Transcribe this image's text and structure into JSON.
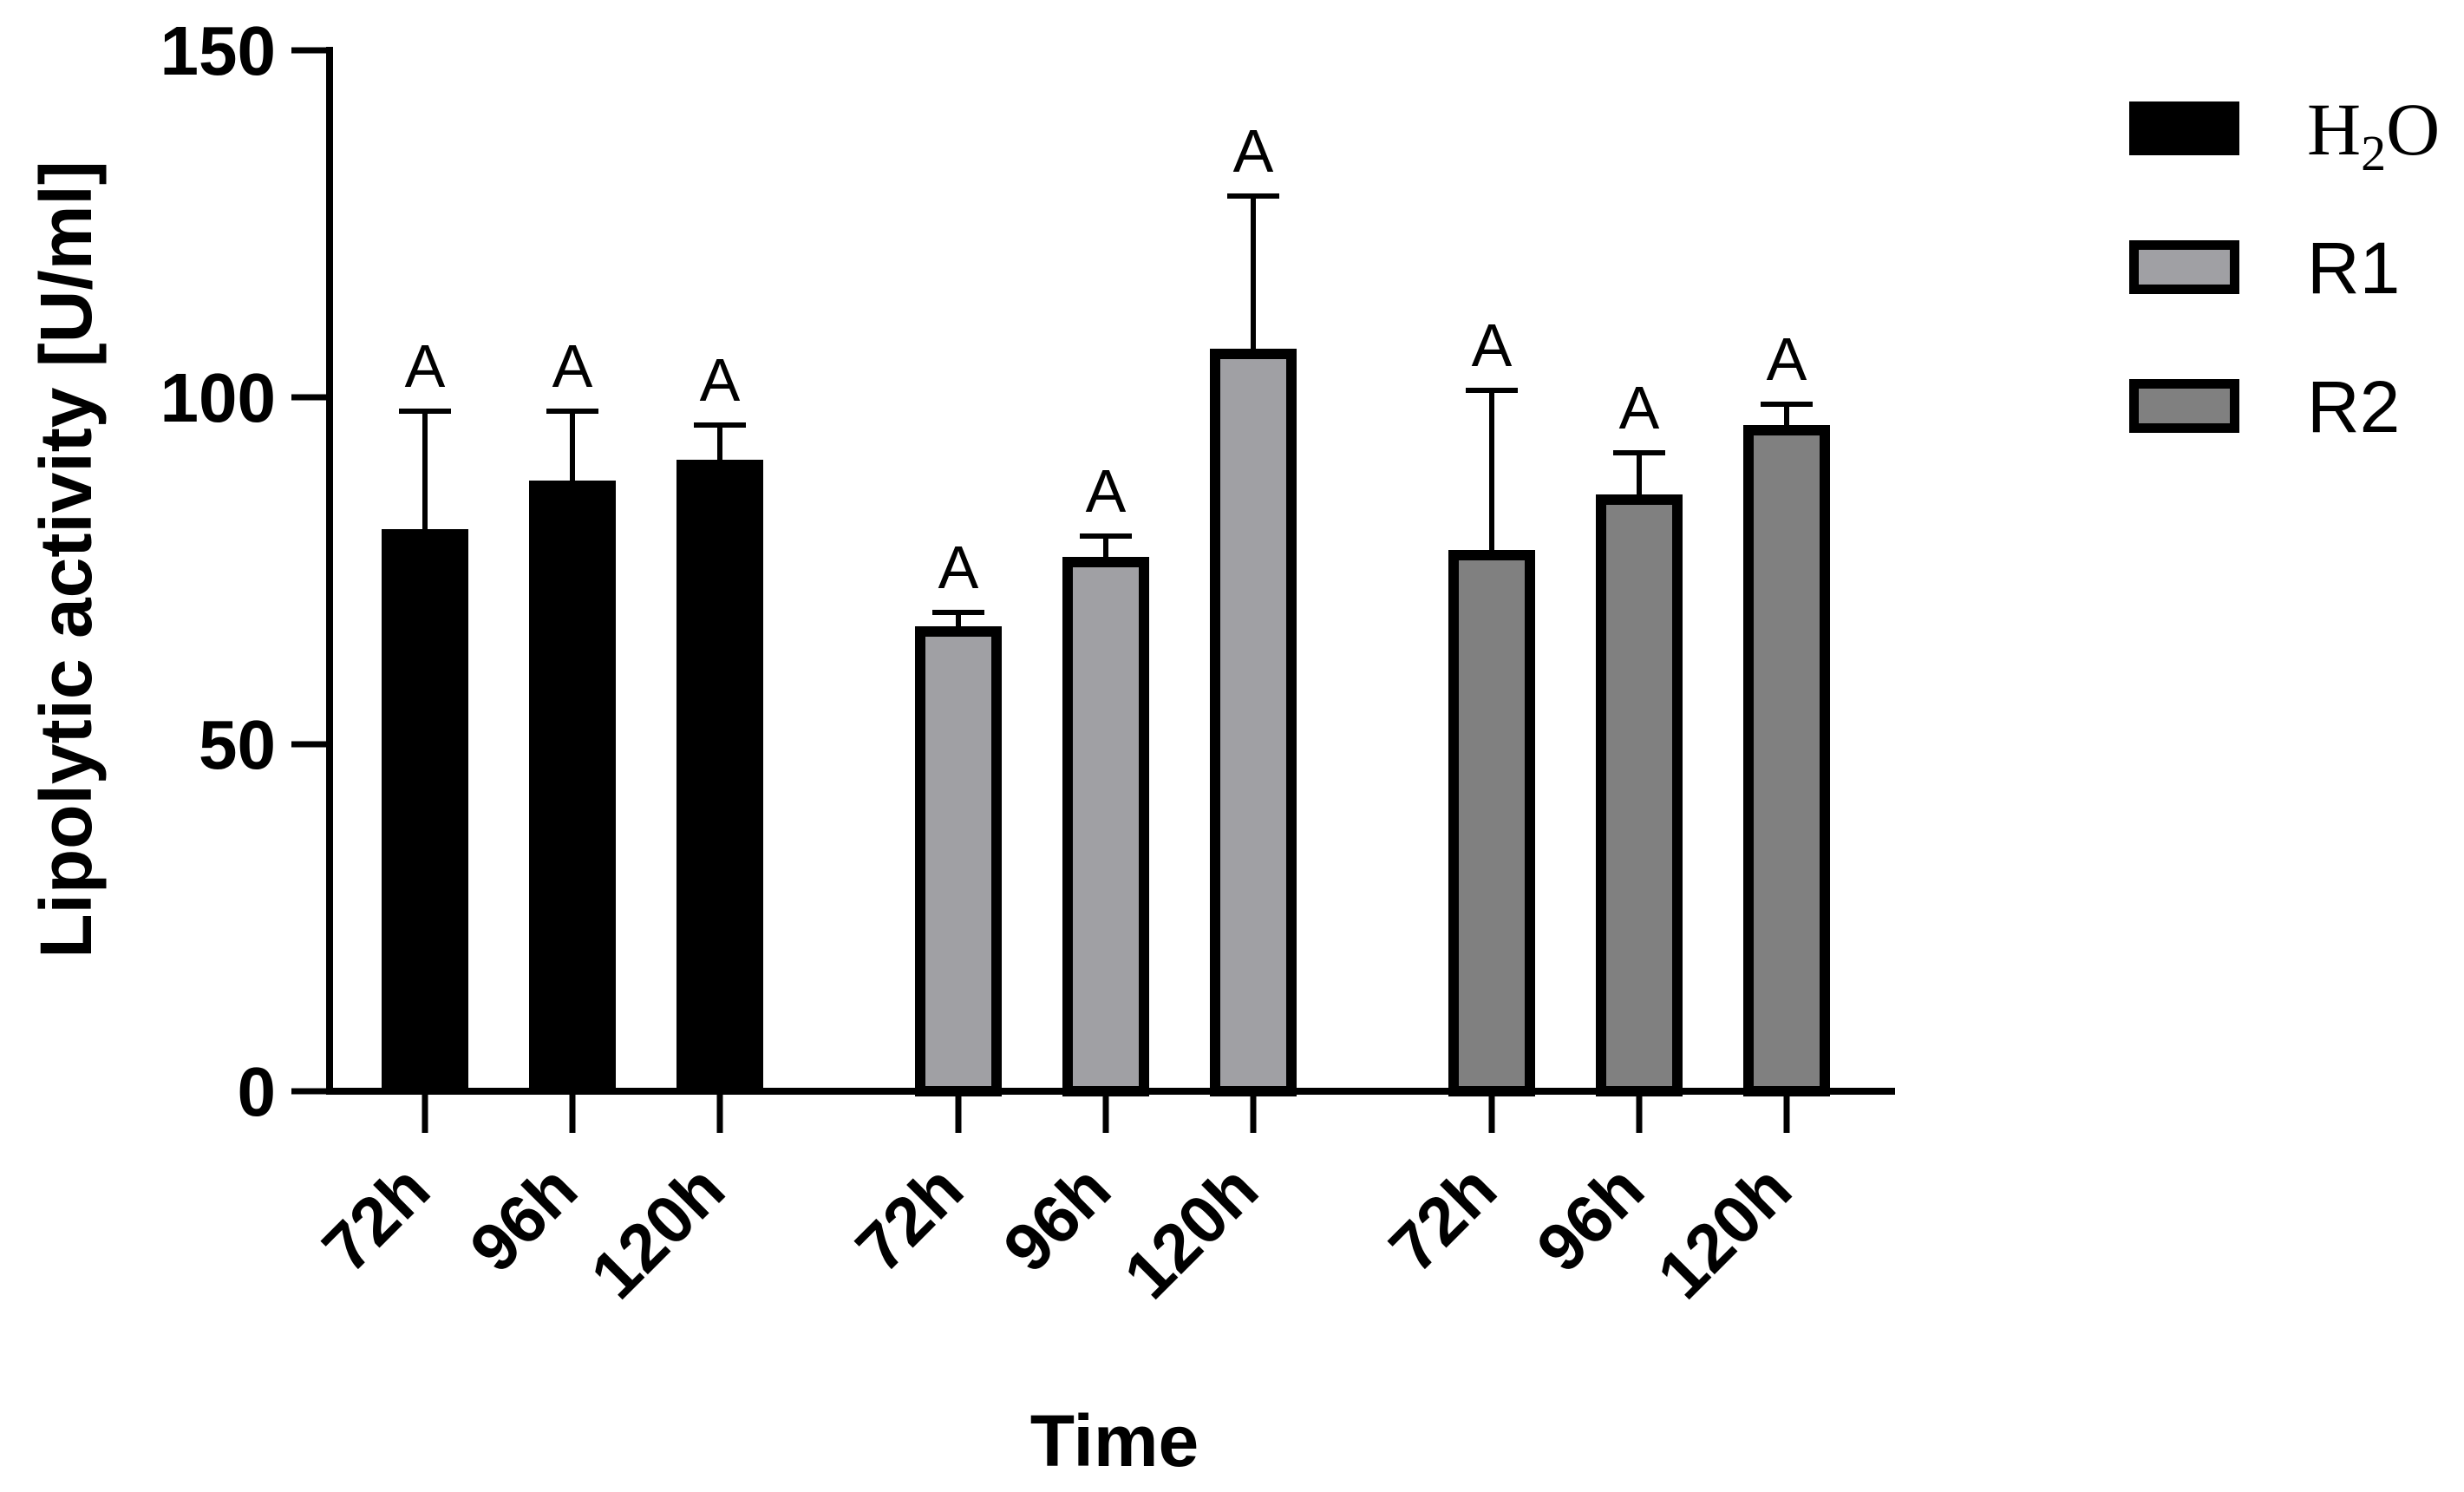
{
  "chart_data": {
    "type": "bar",
    "title": "",
    "xlabel": "Time",
    "ylabel": "Lipolytic activity [U/ml]",
    "ylim": [
      0,
      150
    ],
    "yticks": [
      "0",
      "50",
      "100",
      "150"
    ],
    "grid": false,
    "legend_position": "top-right",
    "groups": [
      {
        "series": "H2O",
        "color": "#000000",
        "categories": [
          "72h",
          "96h",
          "120h"
        ],
        "values": [
          81,
          88,
          91
        ],
        "errors": [
          17,
          10,
          5
        ],
        "labels": [
          "A",
          "A",
          "A"
        ]
      },
      {
        "series": "R1",
        "color": "#a0a0a4",
        "categories": [
          "72h",
          "96h",
          "120h"
        ],
        "values": [
          67,
          77,
          107
        ],
        "errors": [
          2,
          3,
          22
        ],
        "labels": [
          "A",
          "A",
          "A"
        ]
      },
      {
        "series": "R2",
        "color": "#808080",
        "categories": [
          "72h",
          "96h",
          "120h"
        ],
        "values": [
          78,
          86,
          96
        ],
        "errors": [
          23,
          6,
          3
        ],
        "labels": [
          "A",
          "A",
          "A"
        ]
      }
    ],
    "legend": [
      {
        "name": "H2O",
        "base": "H",
        "sub": "2",
        "tail": "O",
        "color": "#000000"
      },
      {
        "name": "R1",
        "color": "#a0a0a4"
      },
      {
        "name": "R2",
        "color": "#808080"
      }
    ]
  }
}
